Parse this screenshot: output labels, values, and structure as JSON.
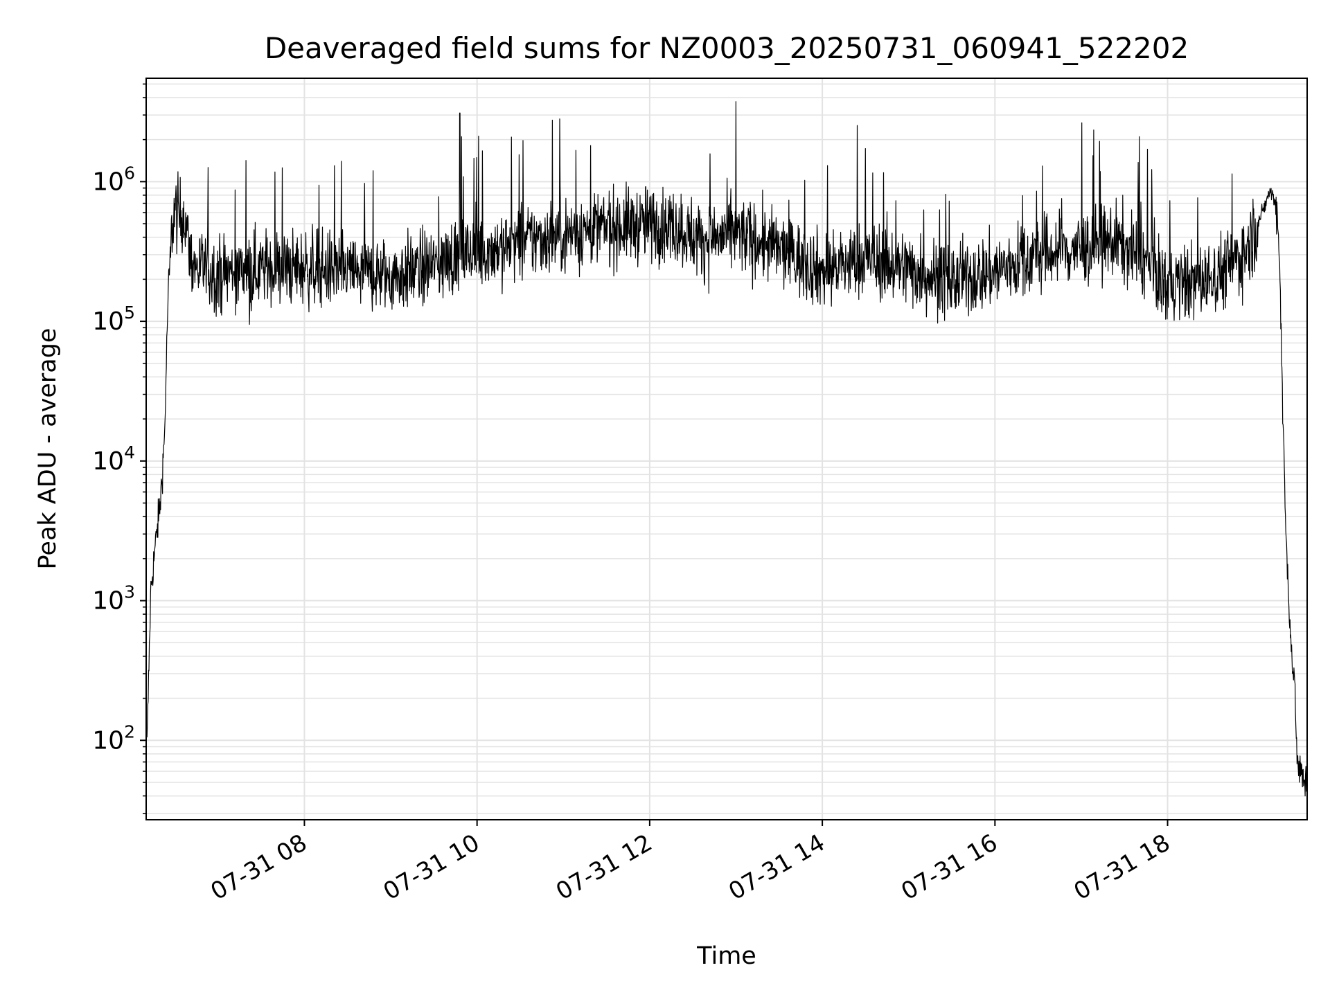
{
  "chart_data": {
    "type": "line",
    "title": "Deaveraged field sums for NZ0003_20250731_060941_522202",
    "xlabel": "Time",
    "ylabel": "Peak ADU - average",
    "x_ticks": [
      "07-31 08",
      "07-31 10",
      "07-31 12",
      "07-31 14",
      "07-31 16",
      "07-31 18"
    ],
    "x_tick_hours": [
      8,
      10,
      12,
      14,
      16,
      18
    ],
    "y_ticks": [
      {
        "base": "10",
        "exp": "2",
        "value": 100
      },
      {
        "base": "10",
        "exp": "3",
        "value": 1000
      },
      {
        "base": "10",
        "exp": "4",
        "value": 10000
      },
      {
        "base": "10",
        "exp": "5",
        "value": 100000
      },
      {
        "base": "10",
        "exp": "6",
        "value": 1000000
      }
    ],
    "xlim": [
      "2025-07-31 06:10",
      "2025-07-31 19:37"
    ],
    "ylim": [
      27,
      5500000
    ],
    "y_scale": "log",
    "grid": true,
    "series_color": "#000000",
    "grid_color": "#e3e3e3",
    "series": [
      {
        "name": "",
        "x_hours": [
          6.17,
          6.22,
          6.28,
          6.33,
          6.38,
          6.42,
          6.47,
          6.5,
          6.55,
          6.6,
          6.7,
          7.0,
          7.5,
          8.0,
          8.5,
          9.0,
          9.5,
          9.8,
          10.2,
          10.6,
          11.0,
          11.5,
          12.0,
          12.3,
          12.6,
          13.0,
          13.5,
          14.0,
          14.5,
          15.0,
          15.5,
          16.0,
          16.5,
          17.0,
          17.4,
          17.7,
          18.0,
          18.5,
          18.9,
          19.1,
          19.18,
          19.22,
          19.27,
          19.3,
          19.33,
          19.37,
          19.43,
          19.48,
          19.5,
          19.55,
          19.6
        ],
        "y_values": [
          60,
          1200,
          2700,
          5000,
          15000,
          150000,
          500000,
          620000,
          560000,
          600000,
          250000,
          220000,
          240000,
          240000,
          230000,
          210000,
          250000,
          300000,
          330000,
          380000,
          420000,
          470000,
          500000,
          480000,
          380000,
          420000,
          330000,
          230000,
          280000,
          240000,
          190000,
          230000,
          300000,
          330000,
          380000,
          280000,
          180000,
          200000,
          310000,
          600000,
          850000,
          800000,
          620000,
          250000,
          30000,
          3000,
          500,
          200,
          70,
          55,
          50
        ]
      }
    ]
  }
}
